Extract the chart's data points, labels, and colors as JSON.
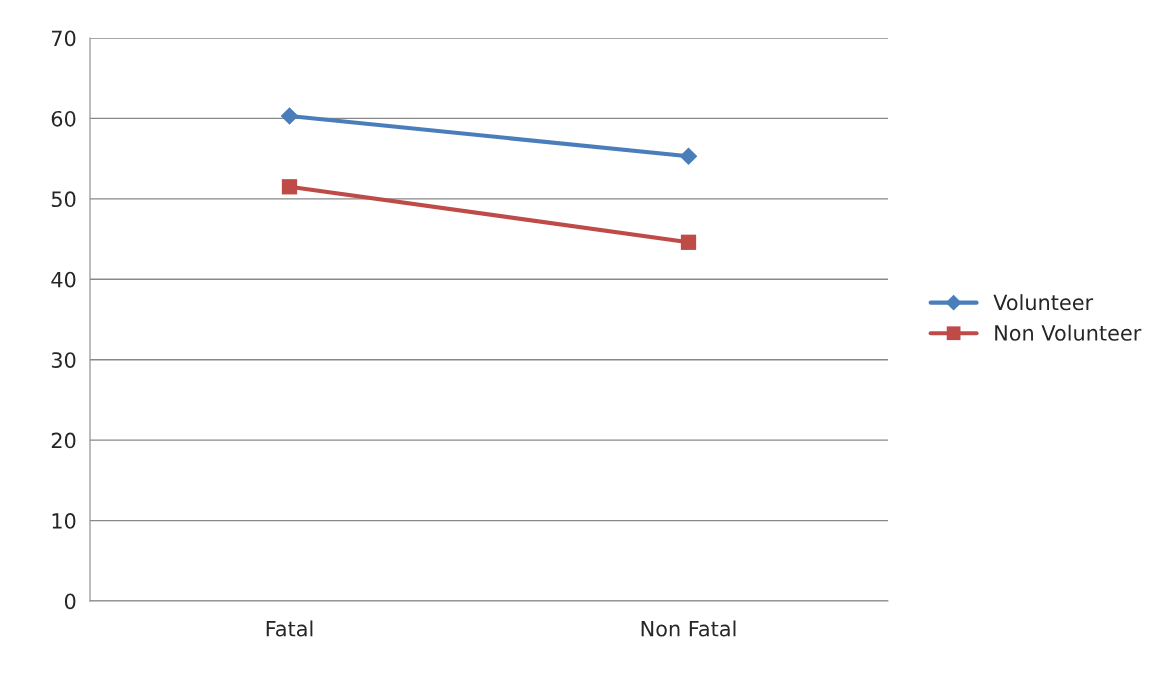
{
  "chart_data": {
    "type": "line",
    "categories": [
      "Fatal",
      "Non Fatal"
    ],
    "series": [
      {
        "name": "Volunteer",
        "color": "#4a7ebb",
        "values": [
          60.3,
          55.3
        ],
        "marker": "diamond"
      },
      {
        "name": "Non Volunteer",
        "color": "#be4b48",
        "values": [
          51.5,
          44.6
        ],
        "marker": "square"
      }
    ],
    "ylim": [
      0,
      70
    ],
    "yticks": [
      0,
      10,
      20,
      30,
      40,
      50,
      60,
      70
    ],
    "grid": "y",
    "legend": "right",
    "line_style": "solid"
  }
}
